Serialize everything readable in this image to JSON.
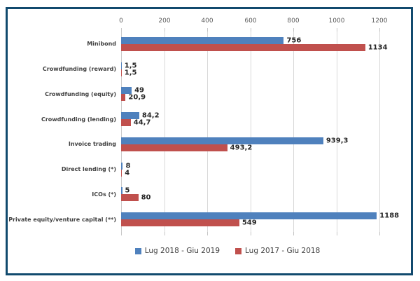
{
  "frame": {
    "border_color": "#114a6e",
    "background": "#ffffff"
  },
  "colors": {
    "series1": "#4f81bd",
    "series2": "#c0504d",
    "gridline": "#d9d9d9",
    "axis_line": "#c9c9c9",
    "tick_label": "#595959",
    "category_label": "#3f3f3f",
    "data_label": "#262626",
    "legend_text": "#404040"
  },
  "chart_data": {
    "type": "bar",
    "orientation": "horizontal",
    "title": "",
    "categories": [
      "Minibond",
      "Crowdfunding (reward)",
      "Crowdfunding (equity)",
      "Crowdfunding (lending)",
      "Invoice trading",
      "Direct lending (*)",
      "ICOs (*)",
      "Private equity/venture capital (**)"
    ],
    "series": [
      {
        "name": "Lug 2018 - Giu 2019",
        "color": "#4f81bd",
        "values": [
          756,
          1.5,
          49,
          84.2,
          939.3,
          8,
          5,
          1188
        ],
        "labels": [
          "756",
          "1,5",
          "49",
          "84,2",
          "939,3",
          "8",
          "5",
          "1188"
        ]
      },
      {
        "name": "Lug 2017 - Giu 2018",
        "color": "#c0504d",
        "values": [
          1134,
          1.5,
          20.9,
          44.7,
          493.2,
          4,
          80,
          549
        ],
        "labels": [
          "1134",
          "1,5",
          "20,9",
          "44,7",
          "493,2",
          "4",
          "80",
          "549"
        ]
      }
    ],
    "x_axis": {
      "position": "top",
      "ticks": [
        0,
        200,
        400,
        600,
        800,
        1000,
        1200
      ],
      "min": 0,
      "max": 1200
    },
    "grid": true,
    "legend_position": "bottom"
  }
}
